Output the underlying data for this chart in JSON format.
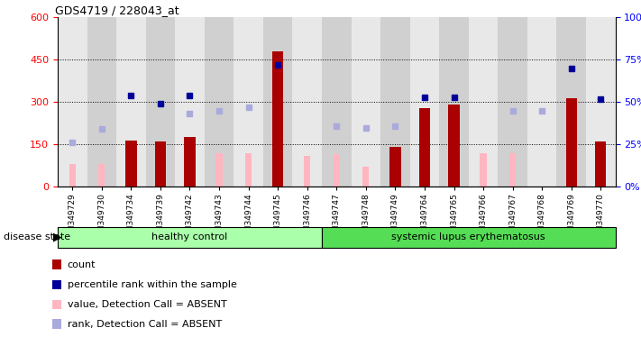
{
  "title": "GDS4719 / 228043_at",
  "samples": [
    "GSM349729",
    "GSM349730",
    "GSM349734",
    "GSM349739",
    "GSM349742",
    "GSM349743",
    "GSM349744",
    "GSM349745",
    "GSM349746",
    "GSM349747",
    "GSM349748",
    "GSM349749",
    "GSM349764",
    "GSM349765",
    "GSM349766",
    "GSM349767",
    "GSM349768",
    "GSM349769",
    "GSM349770"
  ],
  "healthy_count": 9,
  "count": [
    0,
    0,
    165,
    162,
    175,
    0,
    0,
    480,
    0,
    0,
    0,
    140,
    280,
    290,
    0,
    0,
    0,
    315,
    160
  ],
  "percentile_rank_dark": [
    null,
    null,
    54,
    49,
    54,
    null,
    null,
    72,
    null,
    null,
    null,
    null,
    53,
    53,
    null,
    null,
    null,
    70,
    52
  ],
  "value_absent": [
    80,
    80,
    0,
    0,
    0,
    120,
    120,
    0,
    110,
    115,
    70,
    0,
    0,
    0,
    120,
    120,
    0,
    0,
    0
  ],
  "rank_absent": [
    26,
    34,
    null,
    null,
    43,
    45,
    47,
    null,
    null,
    36,
    35,
    36,
    null,
    null,
    null,
    45,
    45,
    null,
    null
  ],
  "ylim_left": [
    0,
    600
  ],
  "ylim_right": [
    0,
    100
  ],
  "yticks_left": [
    0,
    150,
    300,
    450,
    600
  ],
  "yticks_right": [
    0,
    25,
    50,
    75,
    100
  ],
  "bg_color": "#ffffff",
  "col_bg_even": "#e8e8e8",
  "col_bg_odd": "#d0d0d0",
  "bar_color_dark": "#aa0000",
  "bar_color_light": "#ffb6c1",
  "dot_color_dark": "#000099",
  "dot_color_light": "#aaaadd",
  "band_color_healthy": "#aaffaa",
  "band_color_lupus": "#55dd55",
  "legend_items": [
    "count",
    "percentile rank within the sample",
    "value, Detection Call = ABSENT",
    "rank, Detection Call = ABSENT"
  ],
  "legend_colors": [
    "#aa0000",
    "#000099",
    "#ffb6c1",
    "#aaaadd"
  ],
  "legend_marker": [
    "s",
    "s",
    "s",
    "s"
  ]
}
